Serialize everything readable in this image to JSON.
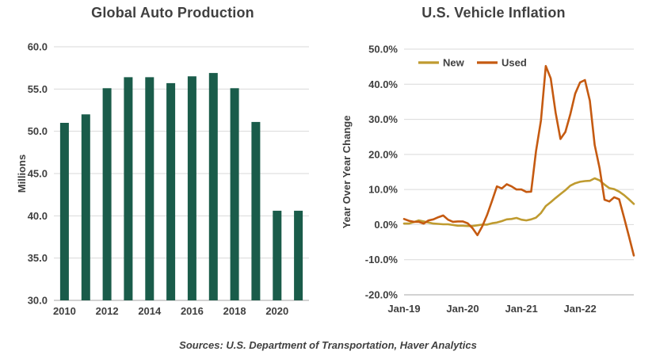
{
  "footer": {
    "sources": "Sources: U.S. Department of Transportation, Haver Analytics"
  },
  "chart_data": [
    {
      "type": "bar",
      "title": "Global Auto Production",
      "ylabel": "Millions",
      "ylim": [
        30.0,
        60.0
      ],
      "ytick_step": 5.0,
      "ytick_labels": [
        "30.0",
        "35.0",
        "40.0",
        "45.0",
        "50.0",
        "55.0",
        "60.0"
      ],
      "categories": [
        "2010",
        "2011",
        "2012",
        "2013",
        "2014",
        "2015",
        "2016",
        "2017",
        "2018",
        "2019",
        "2020",
        "2021"
      ],
      "xtick_labels": [
        "2010",
        "2012",
        "2014",
        "2016",
        "2018",
        "2020"
      ],
      "values": [
        51.0,
        52.0,
        55.1,
        56.4,
        56.4,
        55.7,
        56.5,
        56.9,
        55.1,
        51.1,
        40.6,
        40.6
      ],
      "bar_color": "#1A5C4A",
      "grid": true,
      "gridline_color": "#D9D9D9",
      "axis_line_color": "#A6A6A6"
    },
    {
      "type": "line",
      "title": "U.S. Vehicle Inflation",
      "ylabel": "Year Over Year Change",
      "ylim": [
        -20,
        50
      ],
      "ytick_step": 10,
      "ytick_labels": [
        "-20.0%",
        "-10.0%",
        "0.0%",
        "10.0%",
        "20.0%",
        "30.0%",
        "40.0%",
        "50.0%"
      ],
      "x_tick_labels": [
        "Jan-19",
        "Jan-20",
        "Jan-21",
        "Jan-22"
      ],
      "x_tick_positions": [
        0,
        12,
        24,
        36
      ],
      "x_months": "Jan-19 through Dec-22, monthly",
      "legend_position": "top-left-inside",
      "grid": true,
      "gridline_color": "#D9D9D9",
      "axis_line_color": "#A6A6A6",
      "series": [
        {
          "name": "New",
          "color": "#BF9B30",
          "values": [
            0.3,
            0.3,
            0.7,
            1.2,
            0.9,
            0.6,
            0.3,
            0.2,
            0.1,
            0.1,
            -0.1,
            -0.3,
            -0.3,
            -0.4,
            -0.4,
            -0.2,
            0.0,
            0.0,
            0.4,
            0.6,
            1.0,
            1.5,
            1.6,
            1.9,
            1.4,
            1.2,
            1.5,
            2.0,
            3.3,
            5.3,
            6.4,
            7.6,
            8.7,
            9.8,
            11.1,
            11.8,
            12.2,
            12.4,
            12.5,
            13.2,
            12.6,
            11.4,
            10.4,
            10.1,
            9.4,
            8.4,
            7.2,
            5.9
          ]
        },
        {
          "name": "Used",
          "color": "#C55A11",
          "values": [
            1.6,
            1.1,
            0.8,
            0.8,
            0.3,
            1.2,
            1.5,
            2.1,
            2.6,
            1.4,
            0.8,
            0.9,
            0.9,
            0.4,
            -1.0,
            -3.0,
            -0.5,
            2.8,
            6.8,
            10.9,
            10.3,
            11.5,
            10.9,
            10.0,
            10.0,
            9.3,
            9.4,
            21.0,
            29.7,
            45.2,
            41.7,
            31.9,
            24.4,
            26.4,
            31.4,
            37.3,
            40.5,
            41.2,
            35.3,
            22.7,
            16.1,
            7.1,
            6.6,
            7.8,
            7.2,
            2.0,
            -3.3,
            -8.8
          ]
        }
      ]
    }
  ]
}
